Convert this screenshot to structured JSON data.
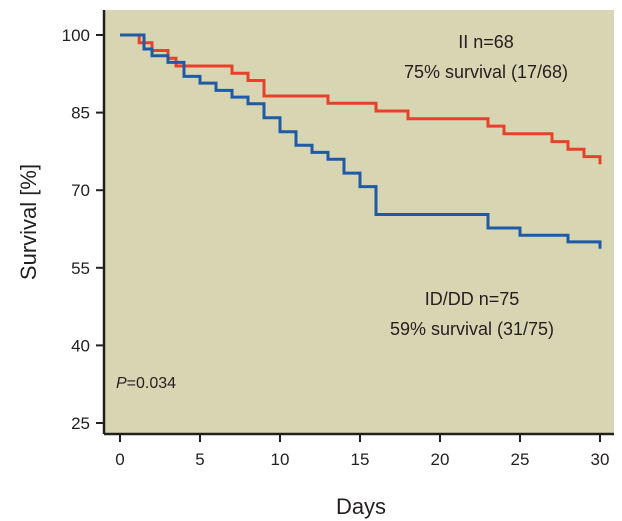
{
  "chart_data": {
    "type": "line",
    "step": true,
    "xlabel": "Days",
    "ylabel": "Survival [%]",
    "xlim": [
      0,
      30
    ],
    "ylim": [
      25,
      100
    ],
    "xticks": [
      "0",
      "5",
      "10",
      "15",
      "20",
      "25",
      "30"
    ],
    "yticks": [
      "25",
      "40",
      "55",
      "70",
      "85",
      "100"
    ],
    "background_color": "#d8d5b3",
    "grid": false,
    "series": [
      {
        "name": "II",
        "color": "#e8402a",
        "annotation_line1": "II  n=68",
        "annotation_line2": "75% survival (17/68)",
        "x": [
          0,
          1,
          1.2,
          2,
          3,
          3.5,
          7,
          8,
          9,
          13,
          16,
          18,
          23,
          24,
          26,
          27,
          28,
          29,
          30
        ],
        "y": [
          100,
          100,
          98.5,
          97,
          95.5,
          94,
          92.6,
          91.2,
          88.2,
          86.8,
          85.3,
          83.8,
          82.4,
          80.9,
          80.9,
          79.4,
          77.9,
          76.5,
          75
        ]
      },
      {
        "name": "ID/DD",
        "color": "#1f5aa6",
        "annotation_line1": "ID/DD  n=75",
        "annotation_line2": "59% survival (31/75)",
        "x": [
          0,
          1,
          1.5,
          2,
          3,
          4,
          5,
          6,
          7,
          8,
          9,
          10,
          11,
          12,
          13,
          14,
          15,
          16,
          23,
          24,
          25,
          27,
          28,
          30
        ],
        "y": [
          100,
          100,
          97.3,
          96,
          94.7,
          92,
          90.7,
          89.3,
          88,
          86.7,
          84,
          81.3,
          78.7,
          77.3,
          76,
          73.3,
          70.7,
          65.3,
          62.7,
          62.7,
          61.3,
          61.3,
          60,
          58.7
        ]
      }
    ],
    "pvalue_italic": "P",
    "pvalue_rest": "=0.034"
  }
}
